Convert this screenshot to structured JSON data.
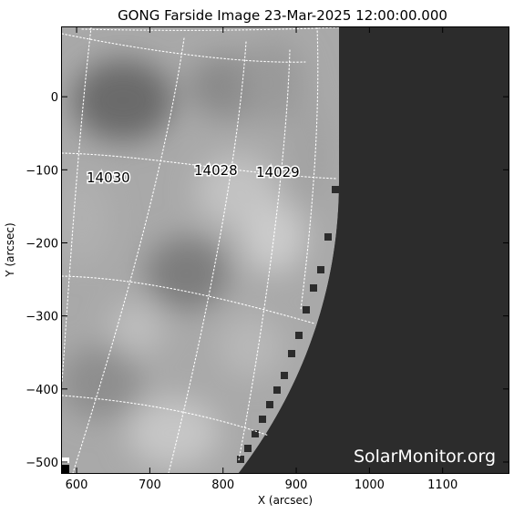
{
  "title": "GONG Farside Image 23-Mar-2025 12:00:00.000",
  "watermark": "SolarMonitor.org",
  "axes": {
    "x_label": "X (arcsec)",
    "y_label": "Y (arcsec)",
    "x_range": [
      580,
      1190
    ],
    "y_range": [
      -515,
      95
    ],
    "x_ticks": [
      "600",
      "700",
      "800",
      "900",
      "1000",
      "1100"
    ],
    "y_ticks": [
      "0",
      "−100",
      "−200",
      "−300",
      "−400",
      "−500"
    ]
  },
  "regions": [
    {
      "label": "14030",
      "x": 632,
      "y": -110
    },
    {
      "label": "14028",
      "x": 778,
      "y": -101
    },
    {
      "label": "14029",
      "x": 880,
      "y": -104
    }
  ],
  "colors": {
    "frame": "#000000",
    "off_disk": "#2c2c2c",
    "grid": "#ffffff",
    "labels": "#000000"
  }
}
